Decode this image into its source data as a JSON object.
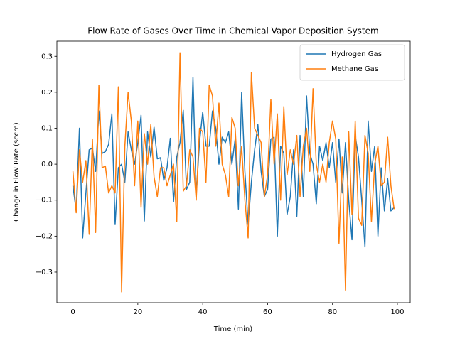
{
  "chart_data": {
    "type": "line",
    "title": "Flow Rate of Gases Over Time in Chemical Vapor Deposition System",
    "xlabel": "Time (min)",
    "ylabel": "Change in Flow Rate (sccm)",
    "x": [
      0,
      1,
      2,
      3,
      4,
      5,
      6,
      7,
      8,
      9,
      10,
      11,
      12,
      13,
      14,
      15,
      16,
      17,
      18,
      19,
      20,
      21,
      22,
      23,
      24,
      25,
      26,
      27,
      28,
      29,
      30,
      31,
      32,
      33,
      34,
      35,
      36,
      37,
      38,
      39,
      40,
      41,
      42,
      43,
      44,
      45,
      46,
      47,
      48,
      49,
      50,
      51,
      52,
      53,
      54,
      55,
      56,
      57,
      58,
      59,
      60,
      61,
      62,
      63,
      64,
      65,
      66,
      67,
      68,
      69,
      70,
      71,
      72,
      73,
      74,
      75,
      76,
      77,
      78,
      79,
      80,
      81,
      82,
      83,
      84,
      85,
      86,
      87,
      88,
      89,
      90,
      91,
      92,
      93,
      94,
      95,
      96,
      97,
      98,
      99
    ],
    "series": [
      {
        "name": "Hydrogen Gas",
        "color": "#1f77b4",
        "values": [
          -0.06,
          -0.13,
          0.1,
          -0.205,
          -0.08,
          0.04,
          0.045,
          -0.02,
          0.148,
          0.03,
          0.035,
          0.055,
          0.14,
          -0.168,
          -0.01,
          0.0,
          -0.05,
          0.09,
          0.04,
          0.0,
          0.06,
          0.136,
          -0.158,
          0.09,
          0.02,
          0.103,
          0.015,
          0.018,
          -0.045,
          -0.01,
          0.072,
          -0.105,
          0.02,
          0.06,
          0.15,
          -0.07,
          -0.05,
          0.242,
          -0.085,
          0.06,
          0.145,
          0.05,
          0.05,
          0.148,
          0.1,
          0.0,
          0.075,
          0.06,
          0.09,
          0.0,
          0.07,
          -0.125,
          0.2,
          -0.02,
          -0.168,
          -0.05,
          0.04,
          0.11,
          -0.02,
          -0.09,
          -0.07,
          0.07,
          0.075,
          -0.2,
          0.05,
          0.03,
          -0.14,
          -0.09,
          0.04,
          -0.145,
          0.08,
          -0.09,
          0.19,
          0.03,
          0.0,
          -0.11,
          0.05,
          0.01,
          0.06,
          -0.01,
          0.06,
          -0.05,
          0.07,
          -0.08,
          0.06,
          -0.1,
          -0.21,
          0.08,
          0.02,
          -0.1,
          -0.23,
          0.12,
          -0.02,
          0.05,
          -0.2,
          -0.01,
          -0.13,
          -0.04,
          -0.13,
          -0.12
        ]
      },
      {
        "name": "Methane Gas",
        "color": "#ff7f0e",
        "values": [
          -0.02,
          -0.135,
          0.04,
          -0.05,
          0.01,
          -0.195,
          0.07,
          -0.19,
          0.22,
          -0.01,
          -0.005,
          -0.08,
          -0.06,
          -0.08,
          0.215,
          -0.355,
          0.05,
          0.2,
          0.12,
          -0.06,
          0.12,
          -0.12,
          0.085,
          0.0,
          0.11,
          -0.035,
          -0.09,
          -0.01,
          -0.01,
          -0.06,
          -0.03,
          0.0,
          -0.16,
          0.31,
          -0.075,
          -0.06,
          0.04,
          0.02,
          -0.1,
          0.1,
          0.09,
          -0.05,
          0.22,
          0.19,
          0.05,
          0.17,
          0.0,
          -0.03,
          -0.09,
          0.13,
          0.1,
          -0.06,
          0.05,
          -0.1,
          -0.205,
          0.255,
          0.1,
          0.08,
          0.06,
          -0.09,
          -0.03,
          0.18,
          0.0,
          0.14,
          -0.1,
          0.16,
          -0.03,
          0.04,
          0.0,
          0.08,
          -0.09,
          0.05,
          0.1,
          -0.02,
          0.21,
          0.0,
          -0.05,
          0.0,
          -0.05,
          0.06,
          0.12,
          0.07,
          -0.22,
          0.02,
          -0.35,
          0.09,
          -0.14,
          0.12,
          -0.15,
          -0.17,
          0.08,
          0.03,
          -0.16,
          0.0,
          0.05,
          -0.06,
          -0.05,
          0.075,
          -0.06,
          -0.125
        ]
      }
    ],
    "xlim": [
      -4.95,
      103.95
    ],
    "ylim": [
      -0.385,
      0.342
    ],
    "xticks": [
      0,
      20,
      40,
      60,
      80,
      100
    ],
    "yticks": [
      {
        "value": -0.3,
        "label": "−0.3"
      },
      {
        "value": -0.2,
        "label": "−0.2"
      },
      {
        "value": -0.1,
        "label": "−0.1"
      },
      {
        "value": 0.0,
        "label": "0.0"
      },
      0.1,
      0.2,
      0.3
    ],
    "legend": "upper right",
    "grid": false
  }
}
